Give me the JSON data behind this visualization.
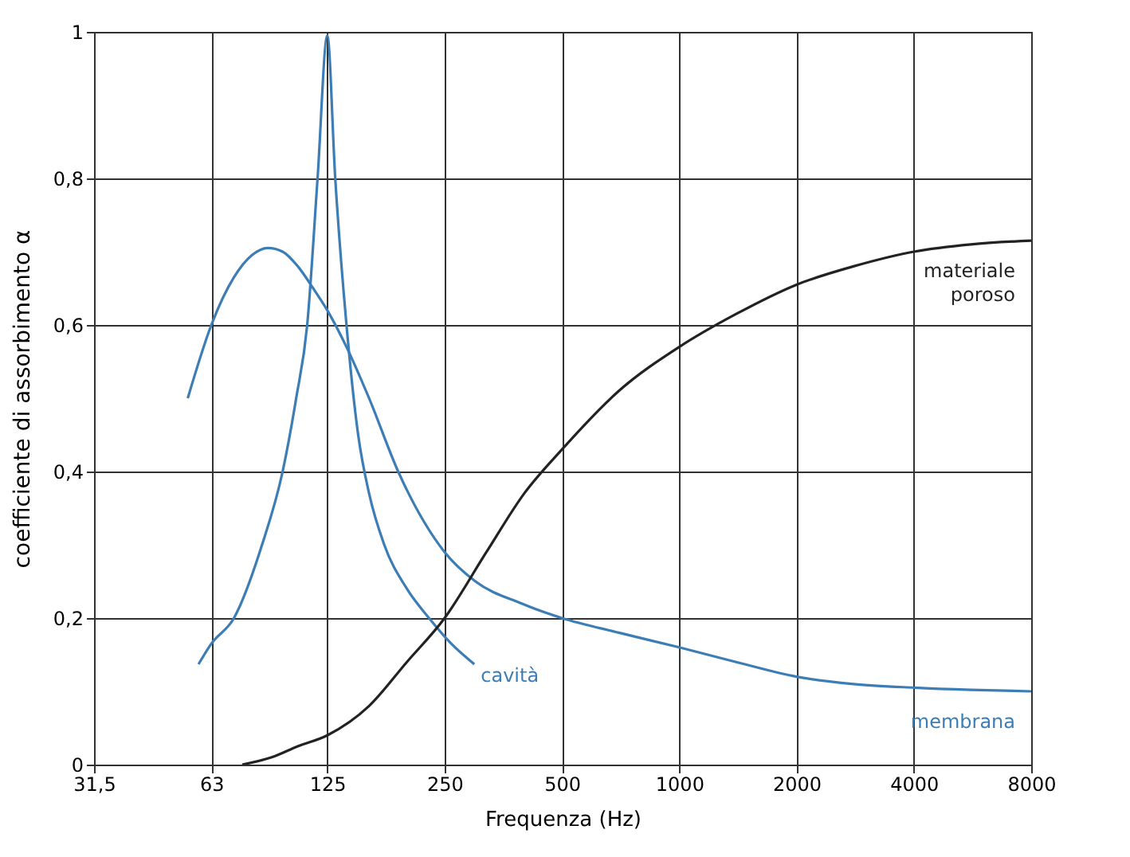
{
  "chart_data": {
    "type": "line",
    "xlabel": "Frequenza (Hz)",
    "ylabel": "coefficiente di assorbimento α",
    "log": "x",
    "grid": true,
    "marker": "none",
    "line_style": "solid",
    "xlim": [
      31.5,
      8000
    ],
    "xticks": [
      {
        "value": 31.5,
        "label": "31,5"
      },
      63,
      125,
      250,
      500,
      1000,
      2000,
      4000,
      8000
    ],
    "ylim": [
      0,
      1
    ],
    "yticks": [
      0,
      {
        "value": 0.2,
        "label": "0,2"
      },
      {
        "value": 0.4,
        "label": "0,4"
      },
      {
        "value": 0.6,
        "label": "0,6"
      },
      {
        "value": 0.8,
        "label": "0,8"
      },
      1
    ],
    "series": [
      {
        "name": "membrana",
        "color": "#3d7db5",
        "x": [
          54.8,
          63,
          72,
          80,
          88,
          96,
          105,
          115,
          125,
          140,
          160,
          190,
          250,
          300,
          393,
          500,
          700,
          1000,
          1400,
          2000,
          2800,
          4000,
          5600,
          8000
        ],
        "values": [
          0.5,
          0.6,
          0.665,
          0.695,
          0.705,
          0.7,
          0.68,
          0.65,
          0.62,
          0.57,
          0.5,
          0.4,
          0.29,
          0.25,
          0.22,
          0.2,
          0.18,
          0.16,
          0.14,
          0.12,
          0.11,
          0.105,
          0.102,
          0.1
        ]
      },
      {
        "name": "cavità",
        "color": "#3d7db5",
        "x": [
          58.4,
          63,
          72,
          85,
          96,
          104,
          111,
          118,
          125,
          131,
          140,
          150,
          160,
          175,
          200,
          228,
          260,
          298
        ],
        "values": [
          0.137,
          0.165,
          0.2,
          0.3,
          0.4,
          0.5,
          0.6,
          0.8,
          0.995,
          0.8,
          0.6,
          0.45,
          0.37,
          0.3,
          0.24,
          0.2,
          0.165,
          0.137
        ]
      },
      {
        "name": "materiale poroso",
        "color": "#222222",
        "x": [
          75.6,
          90,
          105,
          125,
          160,
          200,
          250,
          320,
          400,
          500,
          700,
          1000,
          1400,
          2000,
          2800,
          4000,
          5600,
          8000
        ],
        "values": [
          0,
          0.01,
          0.025,
          0.04,
          0.08,
          0.14,
          0.2,
          0.29,
          0.37,
          0.43,
          0.51,
          0.57,
          0.615,
          0.655,
          0.68,
          0.7,
          0.71,
          0.715
        ]
      }
    ]
  }
}
